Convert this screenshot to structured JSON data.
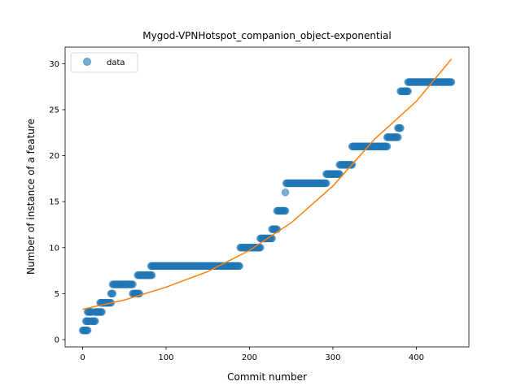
{
  "chart_data": {
    "type": "scatter",
    "title": "Mygod-VPNHotspot_companion_object-exponential",
    "xlabel": "Commit number",
    "ylabel": "Number of instance of a feature",
    "xlim": [
      -21,
      463
    ],
    "ylim": [
      -0.8,
      31.8
    ],
    "xticks": [
      0,
      100,
      200,
      300,
      400
    ],
    "yticks": [
      0,
      5,
      10,
      15,
      20,
      25,
      30
    ],
    "grid": false,
    "legend_position": "top-left",
    "series": [
      {
        "name": "data",
        "kind": "scatter",
        "color": "#1f77b4",
        "segments": [
          {
            "x_start": 0,
            "x_end": 6,
            "y": 1
          },
          {
            "x_start": 4,
            "x_end": 8,
            "y": 2
          },
          {
            "x_start": 6,
            "x_end": 11,
            "y": 3
          },
          {
            "x_start": 11,
            "x_end": 15,
            "y": 2
          },
          {
            "x_start": 15,
            "x_end": 23,
            "y": 3
          },
          {
            "x_start": 21,
            "x_end": 28,
            "y": 4
          },
          {
            "x_start": 28,
            "x_end": 34,
            "y": 4
          },
          {
            "x_start": 34,
            "x_end": 36,
            "y": 5
          },
          {
            "x_start": 36,
            "x_end": 60,
            "y": 6
          },
          {
            "x_start": 60,
            "x_end": 68,
            "y": 5
          },
          {
            "x_start": 66,
            "x_end": 83,
            "y": 7
          },
          {
            "x_start": 82,
            "x_end": 188,
            "y": 8
          },
          {
            "x_start": 189,
            "x_end": 213,
            "y": 10
          },
          {
            "x_start": 213,
            "x_end": 227,
            "y": 11
          },
          {
            "x_start": 227,
            "x_end": 233,
            "y": 12
          },
          {
            "x_start": 233,
            "x_end": 243,
            "y": 14
          },
          {
            "x_start": 243,
            "x_end": 243,
            "y": 16
          },
          {
            "x_start": 244,
            "x_end": 292,
            "y": 17
          },
          {
            "x_start": 292,
            "x_end": 308,
            "y": 18
          },
          {
            "x_start": 308,
            "x_end": 323,
            "y": 19
          },
          {
            "x_start": 323,
            "x_end": 365,
            "y": 21
          },
          {
            "x_start": 365,
            "x_end": 378,
            "y": 22
          },
          {
            "x_start": 378,
            "x_end": 381,
            "y": 23
          },
          {
            "x_start": 381,
            "x_end": 390,
            "y": 27
          },
          {
            "x_start": 390,
            "x_end": 442,
            "y": 28
          }
        ]
      },
      {
        "name": "",
        "kind": "line",
        "color": "#ff7f0e",
        "x": [
          0,
          50,
          100,
          150,
          200,
          250,
          300,
          350,
          400,
          442
        ],
        "y": [
          3.3,
          4.3,
          5.7,
          7.4,
          9.7,
          12.7,
          16.7,
          21.8,
          25.9,
          30.5
        ]
      }
    ]
  }
}
